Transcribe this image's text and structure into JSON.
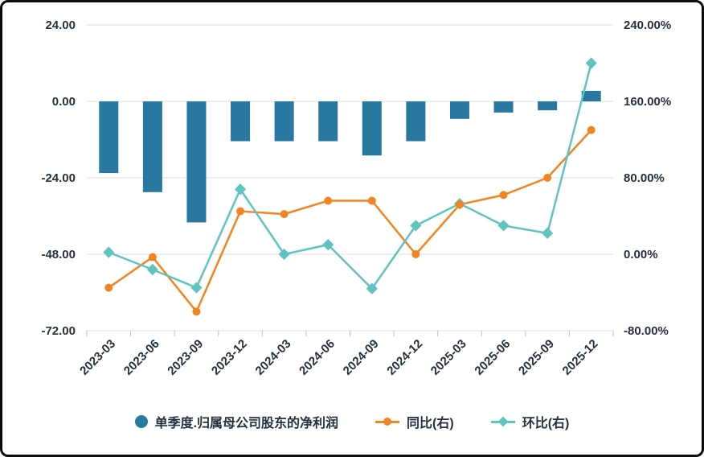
{
  "chart_data": {
    "type": "combo",
    "title": "",
    "categories": [
      "2023-03",
      "2023-06",
      "2023-09",
      "2023-12",
      "2024-03",
      "2024-06",
      "2024-09",
      "2024-12",
      "2025-03",
      "2025-06",
      "2025-09",
      "2025-12"
    ],
    "series": [
      {
        "name": "单季度.归属母公司股东的净利润",
        "type": "bar",
        "axis": "left",
        "color": "#2878a2",
        "values": [
          -22.5,
          -28.5,
          -38,
          -12.5,
          -12.5,
          -12.5,
          -17,
          -12.5,
          -5.5,
          -3.5,
          -2.8,
          3.3
        ]
      },
      {
        "name": "同比(右)",
        "type": "line",
        "marker": "circle",
        "axis": "right",
        "color": "#f28522",
        "values": [
          -35,
          -3,
          -60,
          45,
          42,
          56,
          56,
          0,
          52,
          62,
          80,
          130
        ]
      },
      {
        "name": "环比(右)",
        "type": "line",
        "marker": "diamond",
        "axis": "right",
        "color": "#5fc4c0",
        "values": [
          2,
          -16,
          -35,
          68,
          0,
          10,
          -36,
          30,
          53,
          30,
          22,
          200
        ]
      }
    ],
    "left_axis": {
      "min": -72,
      "max": 24,
      "ticks": [
        {
          "value": 24,
          "label": "24.00"
        },
        {
          "value": 0,
          "label": "0.00"
        },
        {
          "value": -24,
          "label": "-24.00"
        },
        {
          "value": -48,
          "label": "-48.00"
        },
        {
          "value": -72,
          "label": "-72.00"
        }
      ]
    },
    "right_axis": {
      "min": -80,
      "max": 240,
      "ticks": [
        {
          "value": 240,
          "label": "240.00%"
        },
        {
          "value": 160,
          "label": "160.00%"
        },
        {
          "value": 80,
          "label": "80.00%"
        },
        {
          "value": 0,
          "label": "0.00%"
        },
        {
          "value": -80,
          "label": "-80.00%"
        }
      ]
    },
    "legend_position": "bottom",
    "grid_on": true,
    "style": {
      "grid_color": "#d9dee3",
      "tick_color": "#b9c2cc",
      "axis_text_color": "#24313f",
      "background": "#ffffff",
      "border_color": "#0a0a0a"
    }
  }
}
